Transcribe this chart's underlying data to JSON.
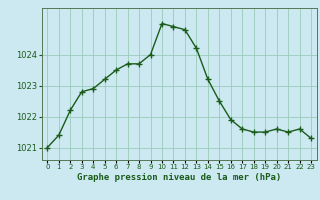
{
  "x": [
    0,
    1,
    2,
    3,
    4,
    5,
    6,
    7,
    8,
    9,
    10,
    11,
    12,
    13,
    14,
    15,
    16,
    17,
    18,
    19,
    20,
    21,
    22,
    23
  ],
  "y": [
    1021.0,
    1021.4,
    1022.2,
    1022.8,
    1022.9,
    1023.2,
    1023.5,
    1023.7,
    1023.7,
    1024.0,
    1025.0,
    1024.9,
    1024.8,
    1024.2,
    1023.2,
    1022.5,
    1021.9,
    1021.6,
    1021.5,
    1021.5,
    1021.6,
    1021.5,
    1021.6,
    1021.3
  ],
  "line_color": "#1a5c1a",
  "marker": "+",
  "marker_size": 4,
  "marker_linewidth": 1.0,
  "line_width": 1.0,
  "bg_color": "#cce8f0",
  "grid_color": "#99ccbb",
  "title": "Graphe pression niveau de la mer (hPa)",
  "title_color": "#1a5c1a",
  "yticks": [
    1021,
    1022,
    1023,
    1024
  ],
  "ylim": [
    1020.6,
    1025.5
  ],
  "xlim": [
    -0.5,
    23.5
  ],
  "xtick_labels": [
    "0",
    "1",
    "2",
    "3",
    "4",
    "5",
    "6",
    "7",
    "8",
    "9",
    "10",
    "11",
    "12",
    "13",
    "14",
    "15",
    "16",
    "17",
    "18",
    "19",
    "20",
    "21",
    "22",
    "23"
  ],
  "ylabel_fontsize": 6.0,
  "xlabel_fontsize": 6.5,
  "tick_label_color": "#1a5c1a",
  "spine_color": "#557755"
}
